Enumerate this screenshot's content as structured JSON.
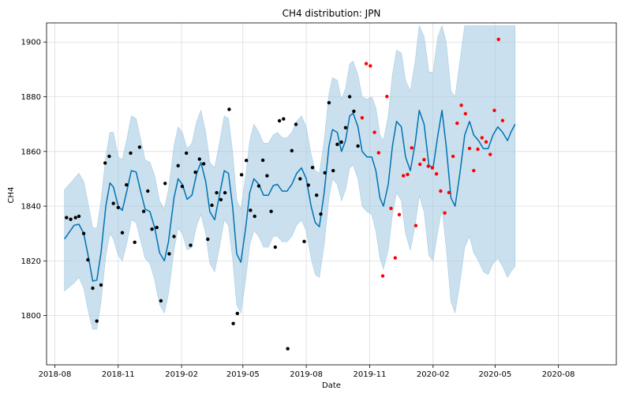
{
  "chart_data": {
    "type": "scatter",
    "title": "CH4 distribution: JPN",
    "xlabel": "Date",
    "ylabel": "CH4",
    "xlim": [
      "2018-07-20",
      "2020-10-24"
    ],
    "ylim": [
      1782,
      1907
    ],
    "x_ticks": [
      {
        "date": "2018-08-01",
        "label": "2018-08"
      },
      {
        "date": "2018-11-01",
        "label": "2018-11"
      },
      {
        "date": "2019-02-01",
        "label": "2019-02"
      },
      {
        "date": "2019-05-01",
        "label": "2019-05"
      },
      {
        "date": "2019-08-01",
        "label": "2019-08"
      },
      {
        "date": "2019-11-01",
        "label": "2019-11"
      },
      {
        "date": "2020-02-01",
        "label": "2020-02"
      },
      {
        "date": "2020-05-01",
        "label": "2020-05"
      },
      {
        "date": "2020-08-01",
        "label": "2020-08"
      }
    ],
    "y_ticks": [
      1800,
      1820,
      1840,
      1860,
      1880,
      1900
    ],
    "grid": true,
    "colors": {
      "observed": "#000000",
      "future": "#ff0000",
      "forecast_line": "#0072b2",
      "uncertainty_band": "#a6cbe2"
    },
    "series": [
      {
        "role": "observed",
        "points": [
          [
            "2018-08-18",
            1835.8
          ],
          [
            "2018-08-24",
            1835.2
          ],
          [
            "2018-08-31",
            1835.8
          ],
          [
            "2018-09-05",
            1836.3
          ],
          [
            "2018-09-12",
            1830.0
          ],
          [
            "2018-09-18",
            1820.4
          ],
          [
            "2018-09-25",
            1810.0
          ],
          [
            "2018-10-01",
            1798.0
          ],
          [
            "2018-10-07",
            1811.2
          ],
          [
            "2018-10-13",
            1855.8
          ],
          [
            "2018-10-19",
            1858.2
          ],
          [
            "2018-10-25",
            1841.0
          ],
          [
            "2018-11-01",
            1839.5
          ],
          [
            "2018-11-07",
            1830.3
          ],
          [
            "2018-11-13",
            1847.8
          ],
          [
            "2018-11-19",
            1859.4
          ],
          [
            "2018-11-25",
            1826.8
          ],
          [
            "2018-12-02",
            1861.6
          ],
          [
            "2018-12-08",
            1838.1
          ],
          [
            "2018-12-14",
            1845.5
          ],
          [
            "2018-12-20",
            1831.6
          ],
          [
            "2018-12-27",
            1832.2
          ],
          [
            "2019-01-02",
            1805.4
          ],
          [
            "2019-01-08",
            1848.3
          ],
          [
            "2019-01-14",
            1822.6
          ],
          [
            "2019-01-21",
            1828.9
          ],
          [
            "2019-01-27",
            1854.8
          ],
          [
            "2019-02-02",
            1847.2
          ],
          [
            "2019-02-08",
            1859.4
          ],
          [
            "2019-02-14",
            1825.7
          ],
          [
            "2019-02-21",
            1852.4
          ],
          [
            "2019-02-27",
            1857.2
          ],
          [
            "2019-03-05",
            1855.5
          ],
          [
            "2019-03-11",
            1827.9
          ],
          [
            "2019-03-17",
            1840.3
          ],
          [
            "2019-03-24",
            1844.9
          ],
          [
            "2019-03-30",
            1842.4
          ],
          [
            "2019-04-05",
            1844.9
          ],
          [
            "2019-04-11",
            1875.4
          ],
          [
            "2019-04-17",
            1797.1
          ],
          [
            "2019-04-23",
            1800.8
          ],
          [
            "2019-04-29",
            1851.5
          ],
          [
            "2019-05-06",
            1856.7
          ],
          [
            "2019-05-12",
            1838.5
          ],
          [
            "2019-05-18",
            1836.3
          ],
          [
            "2019-05-24",
            1847.4
          ],
          [
            "2019-05-30",
            1856.8
          ],
          [
            "2019-06-05",
            1851.1
          ],
          [
            "2019-06-11",
            1838.1
          ],
          [
            "2019-06-17",
            1825.0
          ],
          [
            "2019-06-23",
            1871.2
          ],
          [
            "2019-06-29",
            1871.9
          ],
          [
            "2019-07-05",
            1787.9
          ],
          [
            "2019-07-11",
            1860.3
          ],
          [
            "2019-07-17",
            1869.9
          ],
          [
            "2019-07-23",
            1850.0
          ],
          [
            "2019-07-29",
            1827.1
          ],
          [
            "2019-08-04",
            1847.7
          ],
          [
            "2019-08-10",
            1854.1
          ],
          [
            "2019-08-16",
            1844.0
          ],
          [
            "2019-08-22",
            1837.1
          ],
          [
            "2019-08-28",
            1852.2
          ],
          [
            "2019-09-03",
            1877.8
          ],
          [
            "2019-09-09",
            1853.0
          ],
          [
            "2019-09-15",
            1862.6
          ],
          [
            "2019-09-21",
            1863.4
          ],
          [
            "2019-09-27",
            1868.7
          ],
          [
            "2019-10-03",
            1880.0
          ],
          [
            "2019-10-09",
            1874.7
          ],
          [
            "2019-10-15",
            1862.0
          ]
        ]
      },
      {
        "role": "future",
        "points": [
          [
            "2019-10-21",
            1872.3
          ],
          [
            "2019-10-27",
            1892.1
          ],
          [
            "2019-11-02",
            1891.3
          ],
          [
            "2019-11-08",
            1867.0
          ],
          [
            "2019-11-14",
            1859.5
          ],
          [
            "2019-11-20",
            1814.5
          ],
          [
            "2019-11-26",
            1880.1
          ],
          [
            "2019-12-02",
            1839.2
          ],
          [
            "2019-12-08",
            1821.1
          ],
          [
            "2019-12-14",
            1836.9
          ],
          [
            "2019-12-20",
            1851.1
          ],
          [
            "2019-12-26",
            1851.6
          ],
          [
            "2020-01-01",
            1861.3
          ],
          [
            "2020-01-07",
            1832.9
          ],
          [
            "2020-01-13",
            1855.3
          ],
          [
            "2020-01-19",
            1857.0
          ],
          [
            "2020-01-25",
            1854.6
          ],
          [
            "2020-01-31",
            1854.0
          ],
          [
            "2020-02-06",
            1851.8
          ],
          [
            "2020-02-12",
            1845.5
          ],
          [
            "2020-02-18",
            1837.5
          ],
          [
            "2020-02-24",
            1845.0
          ],
          [
            "2020-03-01",
            1858.2
          ],
          [
            "2020-03-07",
            1870.3
          ],
          [
            "2020-03-13",
            1876.9
          ],
          [
            "2020-03-19",
            1873.8
          ],
          [
            "2020-03-25",
            1861.1
          ],
          [
            "2020-03-31",
            1853.0
          ],
          [
            "2020-04-06",
            1860.8
          ],
          [
            "2020-04-12",
            1865.0
          ],
          [
            "2020-04-18",
            1863.5
          ],
          [
            "2020-04-24",
            1858.9
          ],
          [
            "2020-04-30",
            1875.0
          ],
          [
            "2020-05-06",
            1901.0
          ],
          [
            "2020-05-12",
            1871.3
          ]
        ]
      }
    ],
    "forecast": [
      [
        "2018-08-15",
        1828.0,
        1809.0,
        1846.0
      ],
      [
        "2018-08-29",
        1833.0,
        1812.0,
        1850.0
      ],
      [
        "2018-09-05",
        1833.4,
        1814.0,
        1852.0
      ],
      [
        "2018-09-12",
        1830.0,
        1810.0,
        1849.0
      ],
      [
        "2018-09-19",
        1821.0,
        1801.0,
        1840.0
      ],
      [
        "2018-09-25",
        1812.6,
        1795.0,
        1832.0
      ],
      [
        "2018-10-01",
        1813.0,
        1795.0,
        1832.0
      ],
      [
        "2018-10-07",
        1823.0,
        1805.0,
        1842.0
      ],
      [
        "2018-10-14",
        1840.0,
        1822.0,
        1858.0
      ],
      [
        "2018-10-20",
        1848.5,
        1830.0,
        1867.0
      ],
      [
        "2018-10-25",
        1847.0,
        1828.0,
        1867.0
      ],
      [
        "2018-11-01",
        1840.0,
        1822.0,
        1858.0
      ],
      [
        "2018-11-07",
        1838.5,
        1820.0,
        1857.0
      ],
      [
        "2018-11-14",
        1846.0,
        1827.0,
        1865.0
      ],
      [
        "2018-11-20",
        1853.0,
        1835.0,
        1873.0
      ],
      [
        "2018-11-27",
        1852.5,
        1834.0,
        1872.0
      ],
      [
        "2018-12-04",
        1845.0,
        1827.0,
        1864.0
      ],
      [
        "2018-12-10",
        1839.0,
        1821.0,
        1857.0
      ],
      [
        "2018-12-17",
        1838.0,
        1819.0,
        1856.0
      ],
      [
        "2018-12-24",
        1832.0,
        1813.0,
        1851.0
      ],
      [
        "2018-12-31",
        1823.0,
        1804.0,
        1842.0
      ],
      [
        "2019-01-07",
        1820.0,
        1801.0,
        1839.0
      ],
      [
        "2019-01-13",
        1827.0,
        1808.0,
        1846.0
      ],
      [
        "2019-01-21",
        1843.0,
        1824.0,
        1862.0
      ],
      [
        "2019-01-27",
        1850.0,
        1832.0,
        1869.0
      ],
      [
        "2019-02-02",
        1848.0,
        1830.0,
        1867.0
      ],
      [
        "2019-02-09",
        1842.5,
        1824.0,
        1861.0
      ],
      [
        "2019-02-16",
        1844.0,
        1825.0,
        1863.0
      ],
      [
        "2019-02-23",
        1852.0,
        1833.0,
        1871.0
      ],
      [
        "2019-03-01",
        1856.0,
        1837.0,
        1875.0
      ],
      [
        "2019-03-08",
        1849.0,
        1830.0,
        1867.0
      ],
      [
        "2019-03-14",
        1838.0,
        1819.0,
        1856.0
      ],
      [
        "2019-03-21",
        1835.0,
        1816.0,
        1854.0
      ],
      [
        "2019-03-28",
        1844.0,
        1825.0,
        1863.0
      ],
      [
        "2019-04-04",
        1853.0,
        1835.0,
        1873.0
      ],
      [
        "2019-04-10",
        1852.0,
        1833.0,
        1872.0
      ],
      [
        "2019-04-16",
        1840.0,
        1821.0,
        1860.0
      ],
      [
        "2019-04-22",
        1822.5,
        1804.0,
        1842.0
      ],
      [
        "2019-04-28",
        1819.5,
        1801.0,
        1839.0
      ],
      [
        "2019-05-05",
        1832.0,
        1813.0,
        1851.0
      ],
      [
        "2019-05-11",
        1845.0,
        1826.0,
        1864.0
      ],
      [
        "2019-05-17",
        1850.0,
        1831.0,
        1870.0
      ],
      [
        "2019-05-24",
        1848.0,
        1829.0,
        1867.0
      ],
      [
        "2019-05-31",
        1844.0,
        1825.0,
        1863.0
      ],
      [
        "2019-06-07",
        1844.0,
        1825.0,
        1863.0
      ],
      [
        "2019-06-14",
        1847.5,
        1829.0,
        1866.0
      ],
      [
        "2019-06-20",
        1848.0,
        1829.0,
        1867.0
      ],
      [
        "2019-06-27",
        1845.5,
        1827.0,
        1865.0
      ],
      [
        "2019-07-04",
        1845.5,
        1827.0,
        1865.0
      ],
      [
        "2019-07-11",
        1848.0,
        1829.0,
        1867.0
      ],
      [
        "2019-07-18",
        1852.0,
        1833.0,
        1871.0
      ],
      [
        "2019-07-25",
        1854.0,
        1835.0,
        1873.0
      ],
      [
        "2019-08-01",
        1850.0,
        1831.0,
        1869.0
      ],
      [
        "2019-08-08",
        1840.0,
        1821.0,
        1859.0
      ],
      [
        "2019-08-14",
        1834.0,
        1815.0,
        1853.0
      ],
      [
        "2019-08-20",
        1832.5,
        1814.0,
        1852.0
      ],
      [
        "2019-08-27",
        1845.0,
        1826.0,
        1864.0
      ],
      [
        "2019-09-03",
        1862.0,
        1843.0,
        1881.0
      ],
      [
        "2019-09-08",
        1868.0,
        1850.0,
        1887.0
      ],
      [
        "2019-09-15",
        1867.0,
        1848.0,
        1886.0
      ],
      [
        "2019-09-21",
        1860.0,
        1842.0,
        1879.0
      ],
      [
        "2019-09-27",
        1864.0,
        1846.0,
        1883.0
      ],
      [
        "2019-10-03",
        1873.0,
        1854.0,
        1892.0
      ],
      [
        "2019-10-08",
        1874.0,
        1855.0,
        1893.0
      ],
      [
        "2019-10-15",
        1869.0,
        1850.0,
        1888.0
      ],
      [
        "2019-10-21",
        1860.0,
        1840.0,
        1880.0
      ],
      [
        "2019-10-28",
        1858.0,
        1838.0,
        1879.0
      ],
      [
        "2019-11-04",
        1858.0,
        1837.0,
        1880.0
      ],
      [
        "2019-11-10",
        1853.0,
        1831.0,
        1876.0
      ],
      [
        "2019-11-16",
        1843.0,
        1821.0,
        1866.0
      ],
      [
        "2019-11-21",
        1840.0,
        1817.0,
        1864.0
      ],
      [
        "2019-11-28",
        1848.0,
        1824.0,
        1873.0
      ],
      [
        "2019-12-04",
        1862.0,
        1837.0,
        1888.0
      ],
      [
        "2019-12-10",
        1871.0,
        1845.0,
        1897.0
      ],
      [
        "2019-12-17",
        1869.0,
        1842.0,
        1896.0
      ],
      [
        "2019-12-23",
        1858.0,
        1830.0,
        1886.0
      ],
      [
        "2019-12-30",
        1853.0,
        1824.0,
        1882.0
      ],
      [
        "2020-01-06",
        1863.0,
        1833.0,
        1893.0
      ],
      [
        "2020-01-12",
        1875.0,
        1844.0,
        1906.0
      ],
      [
        "2020-01-19",
        1870.0,
        1838.0,
        1902.0
      ],
      [
        "2020-01-26",
        1855.0,
        1822.0,
        1889.0
      ],
      [
        "2020-02-01",
        1854.0,
        1820.0,
        1889.0
      ],
      [
        "2020-02-08",
        1866.0,
        1831.0,
        1902.0
      ],
      [
        "2020-02-14",
        1875.0,
        1839.0,
        1906.0
      ],
      [
        "2020-02-20",
        1862.0,
        1825.0,
        1900.0
      ],
      [
        "2020-02-27",
        1843.0,
        1805.0,
        1882.0
      ],
      [
        "2020-03-04",
        1840.0,
        1801.0,
        1880.0
      ],
      [
        "2020-03-11",
        1852.0,
        1812.0,
        1893.0
      ],
      [
        "2020-03-18",
        1866.0,
        1825.0,
        1906.0
      ],
      [
        "2020-03-25",
        1871.0,
        1829.0,
        1906.0
      ],
      [
        "2020-03-31",
        1866.0,
        1823.0,
        1906.0
      ],
      [
        "2020-04-07",
        1864.0,
        1820.0,
        1906.0
      ],
      [
        "2020-04-14",
        1861.0,
        1816.0,
        1906.0
      ],
      [
        "2020-04-21",
        1861.0,
        1815.0,
        1906.0
      ],
      [
        "2020-04-28",
        1866.0,
        1819.0,
        1906.0
      ],
      [
        "2020-05-05",
        1869.0,
        1821.0,
        1906.0
      ],
      [
        "2020-05-12",
        1867.0,
        1818.0,
        1906.0
      ],
      [
        "2020-05-19",
        1864.0,
        1814.0,
        1906.0
      ],
      [
        "2020-05-24",
        1867.0,
        1816.0,
        1906.0
      ],
      [
        "2020-05-30",
        1870.0,
        1818.0,
        1906.0
      ]
    ]
  }
}
